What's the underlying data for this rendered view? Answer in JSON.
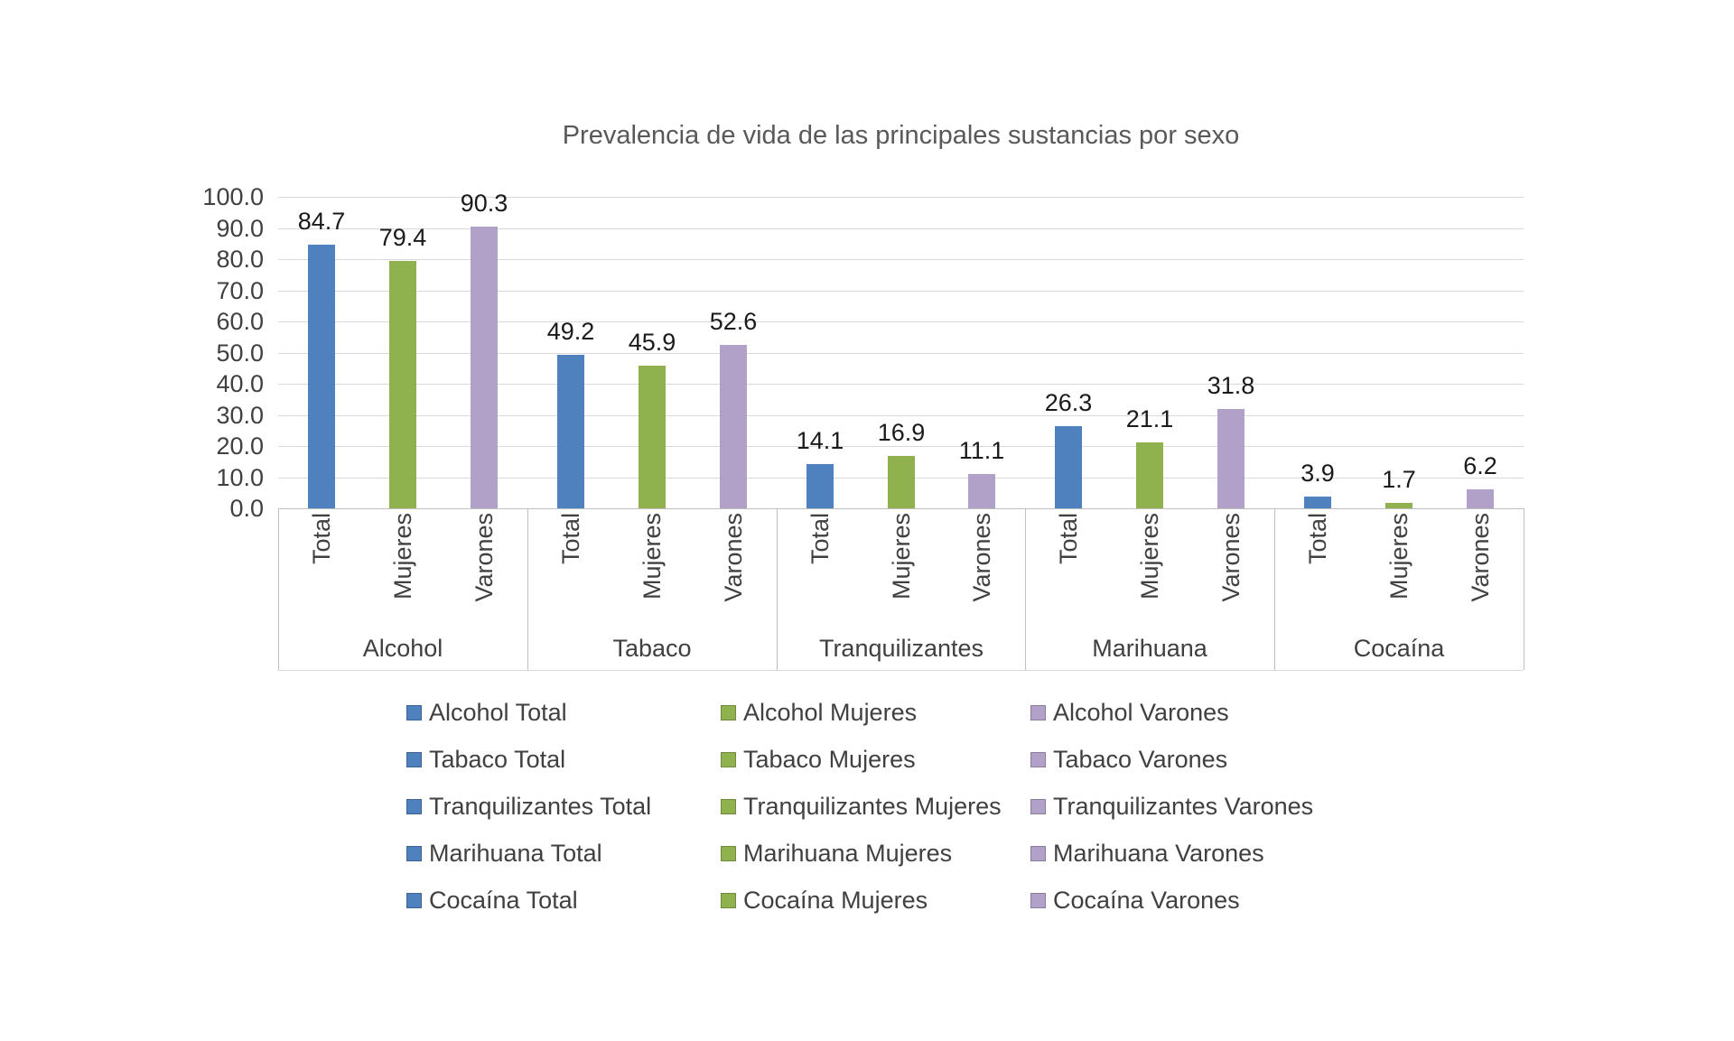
{
  "chart_data": {
    "type": "bar",
    "title": "Prevalencia de vida de las principales sustancias por sexo",
    "groups": [
      "Alcohol",
      "Tabaco",
      "Tranquilizantes",
      "Marihuana",
      "Cocaína"
    ],
    "bar_labels": [
      "Total",
      "Mujeres",
      "Varones"
    ],
    "series": [
      {
        "name": "Total",
        "color": "#4e81bd",
        "values": [
          84.7,
          49.2,
          14.1,
          26.3,
          3.9
        ]
      },
      {
        "name": "Mujeres",
        "color": "#8fb14e",
        "values": [
          79.4,
          45.9,
          16.9,
          21.1,
          1.7
        ]
      },
      {
        "name": "Varones",
        "color": "#b1a0c8",
        "values": [
          90.3,
          52.6,
          11.1,
          31.8,
          6.2
        ]
      }
    ],
    "ylabel": "",
    "xlabel": "",
    "ylim": [
      0,
      100
    ],
    "ytick_step": 10,
    "ytick_labels": [
      "0.0",
      "10.0",
      "20.0",
      "30.0",
      "40.0",
      "50.0",
      "60.0",
      "70.0",
      "80.0",
      "90.0",
      "100.0"
    ],
    "grid": true,
    "legend_position": "bottom",
    "legend_entries": [
      [
        "Alcohol Total",
        "Alcohol Mujeres",
        "Alcohol Varones"
      ],
      [
        "Tabaco Total",
        "Tabaco Mujeres",
        "Tabaco Varones"
      ],
      [
        "Tranquilizantes Total",
        "Tranquilizantes Mujeres",
        "Tranquilizantes Varones"
      ],
      [
        "Marihuana Total",
        "Marihuana Mujeres",
        "Marihuana Varones"
      ],
      [
        "Cocaína Total",
        "Cocaína Mujeres",
        "Cocaína Varones"
      ]
    ],
    "colors": {
      "total_bar": "#4e81bd",
      "mujeres_bar": "#8fb14e",
      "varones_bar": "#b1a0c8",
      "gridline": "#d9d9d9",
      "axis_line": "#bfbfbf",
      "axis_text": "#404040",
      "value_label_text": "#1a1a1a",
      "title_text": "#595959"
    }
  }
}
